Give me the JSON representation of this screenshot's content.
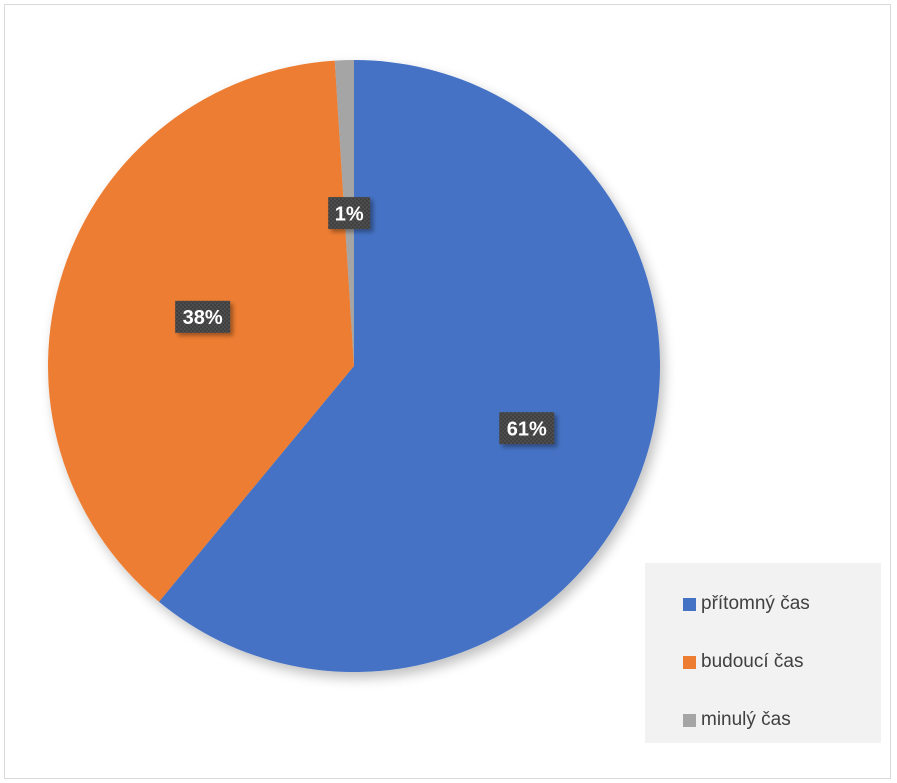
{
  "chart_data": {
    "type": "pie",
    "title": "",
    "slices": [
      {
        "label": "přítomný čas",
        "value": 61,
        "display": "61%",
        "color": "#4472c4"
      },
      {
        "label": "budoucí čas",
        "value": 38,
        "display": "38%",
        "color": "#ed7d31"
      },
      {
        "label": "minulý čas",
        "value": 1,
        "display": "1%",
        "color": "#a5a5a5"
      }
    ],
    "legend_position": "bottom-right",
    "data_label_style": "dark box"
  }
}
